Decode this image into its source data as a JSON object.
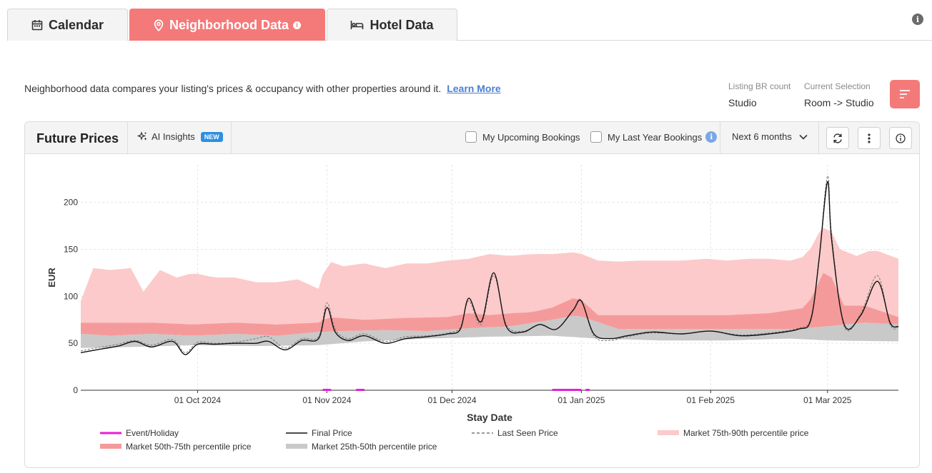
{
  "tabs": [
    {
      "label": "Calendar",
      "icon": "calendar-icon",
      "active": false
    },
    {
      "label": "Neighborhood Data",
      "icon": "location-pin-icon",
      "active": true
    },
    {
      "label": "Hotel Data",
      "icon": "bed-icon",
      "active": false
    }
  ],
  "intro": {
    "text": "Neighborhood data compares your listing's prices & occupancy with other properties around it.",
    "link": "Learn More"
  },
  "listing_meta": [
    {
      "label": "Listing BR count",
      "value": "Studio"
    },
    {
      "label": "Current Selection",
      "value": "Room -> Studio"
    }
  ],
  "card": {
    "title": "Future Prices",
    "ai_label": "AI Insights",
    "new_badge": "NEW",
    "checkbox_upcoming": "My Upcoming Bookings",
    "checkbox_last_year": "My Last Year Bookings",
    "range": "Next 6 months"
  },
  "colors": {
    "accent": "#f47a7a",
    "band_75_90": "#fccaca",
    "band_50_75": "#f59a9a",
    "band_25_50": "#c9c9c9",
    "event": "#e81ed6",
    "final_price": "#111111",
    "last_seen": "#777777"
  },
  "chart_data": {
    "type": "line",
    "xlabel": "Stay Date",
    "ylabel": "EUR",
    "ylim": [
      0,
      240
    ],
    "yticks": [
      0,
      50,
      100,
      150,
      200
    ],
    "xrange": [
      "2024-09-03",
      "2025-03-18"
    ],
    "xticks": [
      {
        "date": "2024-10-01",
        "label": "01 Oct 2024"
      },
      {
        "date": "2024-11-01",
        "label": "01 Nov 2024"
      },
      {
        "date": "2024-12-01",
        "label": "01 Dec 2024"
      },
      {
        "date": "2025-01-01",
        "label": "01 Jan 2025"
      },
      {
        "date": "2025-02-01",
        "label": "01 Feb 2025"
      },
      {
        "date": "2025-03-01",
        "label": "01 Mar 2025"
      }
    ],
    "grid": true,
    "legend": [
      {
        "name": "Event/Holiday",
        "kind": "line",
        "color": "#e81ed6"
      },
      {
        "name": "Final Price",
        "kind": "line",
        "color": "#111111"
      },
      {
        "name": "Last Seen Price",
        "kind": "dashed",
        "color": "#777777"
      },
      {
        "name": "Market 75th-90th percentile price",
        "kind": "band",
        "color": "#fccaca"
      },
      {
        "name": "Market 50th-75th percentile price",
        "kind": "band",
        "color": "#f59a9a"
      },
      {
        "name": "Market 25th-50th percentile price",
        "kind": "band",
        "color": "#c9c9c9"
      }
    ],
    "events": [
      [
        "2024-10-31",
        "2024-11-02"
      ],
      [
        "2024-11-08",
        "2024-11-10"
      ],
      [
        "2024-12-25",
        "2025-01-01"
      ],
      [
        "2025-01-02",
        "2025-01-03"
      ]
    ],
    "series": [
      {
        "name": "Market 75th-90th percentile price",
        "x": [
          "2024-09-03",
          "2024-09-06",
          "2024-09-10",
          "2024-09-15",
          "2024-09-18",
          "2024-09-22",
          "2024-09-26",
          "2024-09-30",
          "2024-10-05",
          "2024-10-10",
          "2024-10-15",
          "2024-10-20",
          "2024-10-25",
          "2024-10-30",
          "2024-11-01",
          "2024-11-05",
          "2024-11-10",
          "2024-11-15",
          "2024-11-20",
          "2024-11-25",
          "2024-11-30",
          "2024-12-05",
          "2024-12-10",
          "2024-12-15",
          "2024-12-20",
          "2024-12-25",
          "2024-12-31",
          "2025-01-05",
          "2025-01-10",
          "2025-01-15",
          "2025-01-20",
          "2025-01-25",
          "2025-01-31",
          "2025-02-05",
          "2025-02-10",
          "2025-02-15",
          "2025-02-20",
          "2025-02-24",
          "2025-02-27",
          "2025-03-01",
          "2025-03-04",
          "2025-03-08",
          "2025-03-12",
          "2025-03-18"
        ],
        "values": [
          95,
          130,
          128,
          130,
          105,
          128,
          120,
          125,
          120,
          120,
          115,
          115,
          118,
          108,
          138,
          132,
          135,
          130,
          135,
          135,
          138,
          140,
          145,
          143,
          145,
          145,
          147,
          138,
          137,
          138,
          138,
          138,
          140,
          138,
          140,
          140,
          138,
          143,
          168,
          178,
          150,
          143,
          150,
          140
        ]
      },
      {
        "name": "Market 50th-75th percentile price",
        "x": [
          "2024-09-03",
          "2024-09-10",
          "2024-09-20",
          "2024-09-30",
          "2024-10-10",
          "2024-10-20",
          "2024-10-30",
          "2024-11-01",
          "2024-11-10",
          "2024-11-20",
          "2024-11-30",
          "2024-12-05",
          "2024-12-10",
          "2024-12-15",
          "2024-12-20",
          "2024-12-25",
          "2024-12-31",
          "2025-01-05",
          "2025-01-15",
          "2025-01-25",
          "2025-02-05",
          "2025-02-15",
          "2025-02-24",
          "2025-02-28",
          "2025-03-01",
          "2025-03-05",
          "2025-03-10",
          "2025-03-18"
        ],
        "values": [
          72,
          72,
          72,
          70,
          72,
          70,
          72,
          78,
          75,
          77,
          78,
          82,
          80,
          82,
          83,
          88,
          100,
          80,
          80,
          80,
          80,
          82,
          88,
          125,
          130,
          90,
          90,
          78
        ]
      },
      {
        "name": "Market 25th-50th percentile price",
        "x": [
          "2024-09-03",
          "2024-09-10",
          "2024-09-20",
          "2024-09-30",
          "2024-10-10",
          "2024-10-20",
          "2024-10-30",
          "2024-11-05",
          "2024-11-15",
          "2024-11-25",
          "2024-12-05",
          "2024-12-15",
          "2024-12-25",
          "2024-12-31",
          "2025-01-10",
          "2025-01-20",
          "2025-01-31",
          "2025-02-10",
          "2025-02-20",
          "2025-03-01",
          "2025-03-10",
          "2025-03-18"
        ],
        "values": [
          60,
          58,
          60,
          58,
          60,
          58,
          62,
          63,
          64,
          63,
          66,
          68,
          75,
          80,
          65,
          65,
          65,
          65,
          65,
          68,
          72,
          70
        ]
      },
      {
        "name": "Market 25th percentile (band floor)",
        "x": [
          "2024-09-03",
          "2024-09-15",
          "2024-09-30",
          "2024-10-15",
          "2024-10-30",
          "2024-11-10",
          "2024-11-25",
          "2024-12-10",
          "2024-12-25",
          "2025-01-05",
          "2025-01-20",
          "2025-02-05",
          "2025-02-20",
          "2025-03-01",
          "2025-03-18"
        ],
        "values": [
          45,
          46,
          48,
          47,
          48,
          52,
          55,
          57,
          58,
          55,
          53,
          53,
          55,
          53,
          52
        ]
      },
      {
        "name": "Final Price",
        "x": [
          "2024-09-03",
          "2024-09-08",
          "2024-09-12",
          "2024-09-16",
          "2024-09-20",
          "2024-09-25",
          "2024-09-28",
          "2024-10-01",
          "2024-10-05",
          "2024-10-10",
          "2024-10-15",
          "2024-10-18",
          "2024-10-22",
          "2024-10-26",
          "2024-10-30",
          "2024-11-01",
          "2024-11-03",
          "2024-11-06",
          "2024-11-10",
          "2024-11-15",
          "2024-11-20",
          "2024-11-25",
          "2024-11-30",
          "2024-12-03",
          "2024-12-05",
          "2024-12-08",
          "2024-12-11",
          "2024-12-14",
          "2024-12-18",
          "2024-12-22",
          "2024-12-26",
          "2024-12-30",
          "2025-01-01",
          "2025-01-04",
          "2025-01-08",
          "2025-01-12",
          "2025-01-18",
          "2025-01-25",
          "2025-02-01",
          "2025-02-08",
          "2025-02-15",
          "2025-02-22",
          "2025-02-25",
          "2025-02-27",
          "2025-03-01",
          "2025-03-02",
          "2025-03-05",
          "2025-03-09",
          "2025-03-13",
          "2025-03-16",
          "2025-03-18"
        ],
        "values": [
          40,
          44,
          47,
          52,
          46,
          52,
          38,
          49,
          49,
          50,
          50,
          52,
          43,
          53,
          55,
          88,
          62,
          53,
          58,
          50,
          55,
          57,
          60,
          65,
          98,
          73,
          125,
          68,
          62,
          70,
          65,
          85,
          95,
          60,
          55,
          58,
          62,
          60,
          63,
          58,
          60,
          65,
          75,
          140,
          222,
          160,
          70,
          80,
          116,
          72,
          68
        ]
      },
      {
        "name": "Last Seen Price",
        "x": [
          "2024-09-03",
          "2024-09-08",
          "2024-09-12",
          "2024-09-16",
          "2024-09-20",
          "2024-09-25",
          "2024-09-28",
          "2024-10-01",
          "2024-10-05",
          "2024-10-10",
          "2024-10-15",
          "2024-10-18",
          "2024-10-22",
          "2024-10-26",
          "2024-10-30",
          "2024-11-01",
          "2024-11-03",
          "2024-11-06",
          "2024-11-10",
          "2024-11-15",
          "2024-11-20",
          "2024-11-25",
          "2024-11-30",
          "2024-12-03",
          "2024-12-05",
          "2024-12-08",
          "2024-12-11",
          "2024-12-14",
          "2024-12-18",
          "2024-12-22",
          "2024-12-26",
          "2024-12-30",
          "2025-01-01",
          "2025-01-04",
          "2025-01-08",
          "2025-01-12",
          "2025-01-18",
          "2025-01-25",
          "2025-02-01",
          "2025-02-08",
          "2025-02-15",
          "2025-02-22",
          "2025-02-25",
          "2025-02-27",
          "2025-03-01",
          "2025-03-02",
          "2025-03-05",
          "2025-03-09",
          "2025-03-13",
          "2025-03-16",
          "2025-03-18"
        ],
        "values": [
          42,
          46,
          49,
          53,
          48,
          54,
          40,
          51,
          50,
          51,
          55,
          57,
          45,
          55,
          57,
          93,
          65,
          55,
          60,
          52,
          57,
          58,
          61,
          67,
          95,
          70,
          122,
          70,
          63,
          70,
          65,
          86,
          96,
          58,
          53,
          57,
          61,
          60,
          63,
          59,
          61,
          66,
          77,
          142,
          228,
          165,
          68,
          82,
          122,
          70,
          67
        ]
      }
    ]
  }
}
